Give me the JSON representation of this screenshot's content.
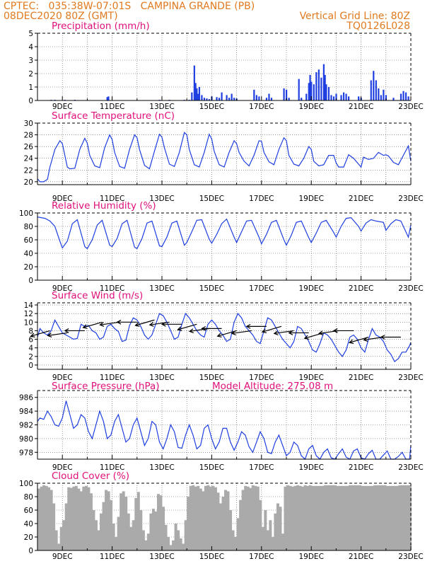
{
  "header": {
    "line1": "CPTEC:   035:38W-07:01S   CAMPINA GRANDE (PB)",
    "line2": "08DEC2020 80Z (GMT)",
    "grid_note": "Vertical Grid Line: 80Z",
    "code": "TQ0126L028"
  },
  "colors": {
    "header": "#e07a1f",
    "title": "#e0107a",
    "series": "#1f3fe0",
    "cloud": "#aaaaaa",
    "wind_arrow": "#000000"
  },
  "chart_data": [
    {
      "type": "bar",
      "title": "Precipitation (mm/h)",
      "ylim": [
        0,
        5
      ],
      "yticks": [
        0,
        1,
        2,
        3,
        4,
        5
      ],
      "x_start": "08DEC",
      "x_end": "23DEC",
      "x_ticks": [
        "9DEC",
        "11DEC",
        "13DEC",
        "15DEC",
        "17DEC",
        "19DEC",
        "21DEC",
        "23DEC"
      ],
      "x_days": [
        8.55,
        8.7,
        9.1,
        9.5,
        10.8,
        10.85,
        12.9,
        13.3,
        13.9,
        14.1,
        14.2,
        14.3,
        14.35,
        14.4,
        14.45,
        14.5,
        14.6,
        14.7,
        14.8,
        14.9,
        15.0,
        15.2,
        15.3,
        15.4,
        15.6,
        15.7,
        15.8,
        15.9,
        16.0,
        16.7,
        16.8,
        16.9,
        17.2,
        17.3,
        17.4,
        17.9,
        18.0,
        18.1,
        18.5,
        18.6,
        18.8,
        18.9,
        18.95,
        19.0,
        19.1,
        19.2,
        19.3,
        19.4,
        19.5,
        19.55,
        19.6,
        19.7,
        19.8,
        19.9,
        20.0,
        20.2,
        20.3,
        20.4,
        20.5,
        20.9,
        21.0,
        21.4,
        21.5,
        21.6,
        21.7,
        21.8,
        21.9,
        22.0,
        22.3,
        22.6,
        22.7,
        22.8,
        22.9
      ],
      "values": [
        0.05,
        0.05,
        0.05,
        0.05,
        0.25,
        0.3,
        0.05,
        0.05,
        0.05,
        0.05,
        0.6,
        2.6,
        1.3,
        0.9,
        0.5,
        1.0,
        0.4,
        0.2,
        0.15,
        0.1,
        0.3,
        0.25,
        0.2,
        0.6,
        0.4,
        0.2,
        0.5,
        0.2,
        0.15,
        0.8,
        0.4,
        0.3,
        0.2,
        0.5,
        0.2,
        0.9,
        0.8,
        0.2,
        1.6,
        0.2,
        0.5,
        1.3,
        1.9,
        1.4,
        1.2,
        2.1,
        2.3,
        1.7,
        2.7,
        1.9,
        1.2,
        1.0,
        0.4,
        0.3,
        0.5,
        0.4,
        0.6,
        0.5,
        0.3,
        0.3,
        0.2,
        1.5,
        2.2,
        1.5,
        0.9,
        0.4,
        0.8,
        0.4,
        0.2,
        0.5,
        0.7,
        0.6,
        0.3
      ]
    },
    {
      "type": "line",
      "title": "Surface Temperature (nC)",
      "ylim": [
        19.5,
        30
      ],
      "yticks": [
        20,
        22,
        24,
        26,
        28,
        30
      ],
      "x_ticks": [
        "9DEC",
        "11DEC",
        "13DEC",
        "15DEC",
        "17DEC",
        "19DEC",
        "21DEC",
        "23DEC"
      ],
      "x_days": [
        8.0,
        8.1,
        8.25,
        8.4,
        8.5,
        8.7,
        8.9,
        9.0,
        9.1,
        9.2,
        9.3,
        9.5,
        9.7,
        9.9,
        10.0,
        10.1,
        10.3,
        10.5,
        10.7,
        10.9,
        11.0,
        11.1,
        11.3,
        11.5,
        11.7,
        11.9,
        12.0,
        12.1,
        12.3,
        12.5,
        12.7,
        12.9,
        13.0,
        13.1,
        13.3,
        13.5,
        13.7,
        13.9,
        14.0,
        14.1,
        14.3,
        14.5,
        14.7,
        14.9,
        15.0,
        15.1,
        15.3,
        15.5,
        15.7,
        15.9,
        16.0,
        16.1,
        16.3,
        16.5,
        16.7,
        16.9,
        17.0,
        17.1,
        17.3,
        17.5,
        17.7,
        17.9,
        18.0,
        18.1,
        18.3,
        18.5,
        18.7,
        18.9,
        19.0,
        19.1,
        19.3,
        19.5,
        19.7,
        19.9,
        20.0,
        20.1,
        20.3,
        20.5,
        20.7,
        20.9,
        21.0,
        21.1,
        21.3,
        21.5,
        21.7,
        21.9,
        22.0,
        22.1,
        22.3,
        22.5,
        22.7,
        22.9,
        23.0
      ],
      "values": [
        20.5,
        20.0,
        20.0,
        20.4,
        22.5,
        25.5,
        27.0,
        26.5,
        24.5,
        22.5,
        22.2,
        22.3,
        25.5,
        27.4,
        26.6,
        24.5,
        22.7,
        22.4,
        25.8,
        28.0,
        27.2,
        25.0,
        22.6,
        22.3,
        25.5,
        28.0,
        27.5,
        25.5,
        22.8,
        22.2,
        25.2,
        28.1,
        27.6,
        25.8,
        23.0,
        22.6,
        25.0,
        28.4,
        28.0,
        25.5,
        22.9,
        22.5,
        25.0,
        28.1,
        27.3,
        25.2,
        22.9,
        22.5,
        25.0,
        27.0,
        26.5,
        25.0,
        23.5,
        22.7,
        24.5,
        27.0,
        26.9,
        25.0,
        23.4,
        22.9,
        25.5,
        27.5,
        27.0,
        24.5,
        23.0,
        22.7,
        24.0,
        26.0,
        25.5,
        23.5,
        22.7,
        22.9,
        24.5,
        24.5,
        23.2,
        22.5,
        22.5,
        24.6,
        24.0,
        23.0,
        22.5,
        24.2,
        23.8,
        24.0,
        25.0,
        24.5,
        24.6,
        24.4,
        23.3,
        22.9,
        24.5,
        26.1,
        23.5
      ]
    },
    {
      "type": "line",
      "title": "Relative Humidity (%)",
      "ylim": [
        0,
        100
      ],
      "yticks": [
        0,
        20,
        40,
        60,
        80,
        100
      ],
      "x_ticks": [
        "9DEC",
        "11DEC",
        "13DEC",
        "15DEC",
        "17DEC",
        "19DEC",
        "21DEC",
        "23DEC"
      ],
      "x_days": [
        8.0,
        8.15,
        8.3,
        8.5,
        8.7,
        8.9,
        9.0,
        9.2,
        9.4,
        9.6,
        9.9,
        10.0,
        10.2,
        10.4,
        10.6,
        10.9,
        11.0,
        11.2,
        11.4,
        11.6,
        11.9,
        12.0,
        12.2,
        12.4,
        12.6,
        12.9,
        13.0,
        13.2,
        13.4,
        13.6,
        13.9,
        14.0,
        14.2,
        14.4,
        14.6,
        14.9,
        15.0,
        15.2,
        15.4,
        15.6,
        15.9,
        16.0,
        16.2,
        16.4,
        16.6,
        16.9,
        17.0,
        17.2,
        17.4,
        17.6,
        17.9,
        18.0,
        18.2,
        18.4,
        18.6,
        18.9,
        19.0,
        19.2,
        19.4,
        19.6,
        19.9,
        20.0,
        20.2,
        20.4,
        20.6,
        20.9,
        21.0,
        21.2,
        21.4,
        21.6,
        21.9,
        22.0,
        22.2,
        22.4,
        22.6,
        22.9,
        23.0
      ],
      "values": [
        94,
        93,
        92,
        88,
        80,
        58,
        48,
        58,
        84,
        90,
        50,
        47,
        60,
        82,
        89,
        52,
        50,
        62,
        84,
        89,
        49,
        47,
        62,
        85,
        88,
        51,
        50,
        64,
        85,
        88,
        52,
        56,
        72,
        89,
        90,
        61,
        55,
        68,
        84,
        91,
        64,
        56,
        72,
        88,
        89,
        64,
        54,
        68,
        86,
        89,
        60,
        52,
        67,
        86,
        88,
        63,
        56,
        70,
        86,
        89,
        71,
        64,
        80,
        92,
        93,
        80,
        73,
        85,
        90,
        88,
        86,
        74,
        84,
        90,
        88,
        64,
        82
      ]
    },
    {
      "type": "line",
      "title": "Surface Wind (m/s)",
      "ylim": [
        -1,
        14.5
      ],
      "yticks": [
        0,
        2,
        4,
        6,
        8,
        10,
        12,
        14
      ],
      "x_ticks": [
        "9DEC",
        "11DEC",
        "13DEC",
        "15DEC",
        "17DEC",
        "19DEC",
        "21DEC",
        "23DEC"
      ],
      "x_days": [
        8.0,
        8.1,
        8.25,
        8.4,
        8.55,
        8.7,
        8.85,
        9.0,
        9.15,
        9.3,
        9.45,
        9.6,
        9.75,
        9.9,
        10.05,
        10.2,
        10.35,
        10.5,
        10.65,
        10.8,
        10.95,
        11.1,
        11.25,
        11.4,
        11.55,
        11.7,
        11.85,
        12.0,
        12.15,
        12.3,
        12.45,
        12.6,
        12.75,
        12.9,
        13.05,
        13.2,
        13.35,
        13.5,
        13.65,
        13.8,
        13.95,
        14.1,
        14.25,
        14.4,
        14.55,
        14.7,
        14.85,
        15.0,
        15.15,
        15.3,
        15.45,
        15.6,
        15.75,
        15.9,
        16.05,
        16.2,
        16.35,
        16.5,
        16.65,
        16.8,
        16.95,
        17.1,
        17.25,
        17.4,
        17.55,
        17.7,
        17.85,
        18.0,
        18.15,
        18.3,
        18.45,
        18.6,
        18.75,
        18.9,
        19.05,
        19.2,
        19.35,
        19.5,
        19.65,
        19.8,
        19.95,
        20.1,
        20.25,
        20.4,
        20.55,
        20.7,
        20.85,
        21.0,
        21.15,
        21.3,
        21.45,
        21.6,
        21.75,
        21.9,
        22.05,
        22.2,
        22.35,
        22.5,
        22.65,
        22.8,
        22.95,
        23.0
      ],
      "values": [
        6.5,
        8.5,
        7.5,
        7.0,
        8.0,
        10.5,
        9.0,
        7.5,
        7.0,
        6.5,
        6.0,
        6.2,
        9.5,
        9.0,
        9.2,
        8.0,
        7.5,
        6.0,
        6.5,
        9.0,
        9.5,
        8.5,
        7.8,
        5.5,
        5.8,
        9.2,
        11.0,
        10.5,
        9.0,
        7.0,
        6.0,
        7.0,
        9.5,
        12.0,
        11.5,
        10.0,
        8.0,
        6.0,
        6.5,
        9.5,
        12.0,
        11.0,
        9.5,
        8.0,
        7.0,
        6.5,
        9.5,
        10.5,
        9.5,
        8.0,
        7.0,
        5.5,
        6.0,
        10.0,
        12.0,
        11.0,
        9.0,
        8.0,
        7.0,
        5.5,
        5.0,
        8.0,
        11.0,
        10.5,
        9.0,
        7.5,
        6.0,
        5.0,
        4.0,
        5.5,
        9.0,
        8.5,
        7.0,
        5.5,
        3.5,
        3.0,
        5.0,
        7.5,
        7.0,
        6.0,
        4.5,
        3.0,
        2.0,
        3.5,
        6.5,
        7.0,
        6.0,
        4.0,
        3.0,
        6.0,
        8.5,
        7.0,
        6.5,
        5.5,
        3.5,
        2.5,
        0.8,
        1.5,
        3.0,
        3.0,
        4.5,
        5.3
      ],
      "arrow_x_days": [
        8.5,
        9.2,
        9.9,
        10.6,
        11.3,
        12.0,
        12.7,
        13.3,
        13.8,
        14.4,
        14.9,
        15.4,
        16.0,
        16.6,
        17.2,
        17.8,
        18.3,
        18.9,
        19.5,
        20.1,
        20.7,
        21.3,
        21.9,
        22.6
      ],
      "arrow_speeds": [
        8,
        7.5,
        8,
        10,
        10,
        10,
        10.5,
        10,
        9.5,
        9.5,
        8.5,
        8.5,
        8,
        8,
        9,
        9,
        8,
        7.5,
        7.5,
        8,
        8,
        6.5,
        6.5,
        6.5
      ]
    },
    {
      "type": "line",
      "title": "Surface Pressure (hPa)",
      "annotation": "Model Altitude: 275.08 m",
      "ylim": [
        977,
        987
      ],
      "yticks": [
        978,
        980,
        982,
        984,
        986
      ],
      "x_ticks": [
        "9DEC",
        "11DEC",
        "13DEC",
        "15DEC",
        "17DEC",
        "19DEC",
        "21DEC",
        "23DEC"
      ],
      "x_days": [
        8.0,
        8.1,
        8.25,
        8.4,
        8.55,
        8.7,
        8.85,
        9.0,
        9.15,
        9.3,
        9.45,
        9.6,
        9.75,
        9.9,
        10.05,
        10.2,
        10.35,
        10.5,
        10.65,
        10.8,
        10.95,
        11.1,
        11.25,
        11.4,
        11.55,
        11.7,
        11.85,
        12.0,
        12.15,
        12.3,
        12.45,
        12.6,
        12.75,
        12.9,
        13.05,
        13.2,
        13.35,
        13.5,
        13.65,
        13.8,
        13.95,
        14.1,
        14.25,
        14.4,
        14.55,
        14.7,
        14.85,
        15.0,
        15.15,
        15.3,
        15.45,
        15.6,
        15.75,
        15.9,
        16.05,
        16.2,
        16.35,
        16.5,
        16.65,
        16.8,
        16.95,
        17.1,
        17.25,
        17.4,
        17.55,
        17.7,
        17.85,
        18.0,
        18.15,
        18.3,
        18.45,
        18.6,
        18.75,
        18.9,
        19.05,
        19.2,
        19.35,
        19.5,
        19.65,
        19.8,
        19.95,
        20.1,
        20.25,
        20.4,
        20.55,
        20.7,
        20.85,
        21.0,
        21.15,
        21.3,
        21.45,
        21.6,
        21.75,
        21.9,
        22.05,
        22.2,
        22.35,
        22.5,
        22.65,
        22.8,
        22.95,
        23.0
      ],
      "values": [
        982.5,
        983.0,
        982.8,
        984.0,
        983.2,
        982.0,
        981.8,
        983.0,
        985.5,
        983.5,
        981.5,
        982.0,
        983.5,
        983.0,
        981.0,
        980.0,
        982.0,
        984.0,
        982.5,
        980.0,
        980.5,
        982.5,
        983.5,
        981.5,
        979.5,
        980.0,
        982.0,
        983.0,
        981.0,
        979.0,
        980.0,
        982.5,
        982.0,
        979.5,
        978.5,
        980.0,
        982.0,
        981.0,
        978.7,
        978.6,
        980.5,
        982.0,
        980.5,
        978.5,
        979.0,
        981.5,
        982.0,
        980.0,
        978.5,
        979.5,
        981.5,
        981.5,
        979.5,
        978.3,
        979.5,
        981.0,
        980.5,
        978.8,
        978.0,
        979.5,
        981.0,
        980.0,
        978.0,
        977.8,
        979.5,
        980.5,
        979.0,
        977.5,
        978.0,
        979.5,
        979.0,
        977.5,
        977.0,
        978.5,
        979.0,
        977.5,
        976.8,
        978.0,
        978.5,
        977.2,
        976.7,
        977.8,
        978.5,
        977.3,
        976.8,
        978.2,
        978.5,
        977.2,
        976.8,
        977.8,
        978.3,
        977.0,
        976.6,
        977.6,
        978.2,
        977.0,
        976.5,
        977.4,
        978.0,
        977.0,
        976.8,
        979.0
      ]
    },
    {
      "type": "area",
      "title": "Cloud Cover (%)",
      "ylim": [
        0,
        100
      ],
      "yticks": [
        0,
        20,
        40,
        60,
        80,
        100
      ],
      "x_ticks": [
        "9DEC",
        "11DEC",
        "13DEC",
        "15DEC",
        "17DEC",
        "19DEC",
        "21DEC",
        "23DEC"
      ],
      "x_days": [
        8.0,
        8.1,
        8.2,
        8.3,
        8.4,
        8.5,
        8.6,
        8.7,
        8.8,
        8.9,
        9.0,
        9.1,
        9.2,
        9.3,
        9.4,
        9.5,
        9.6,
        9.7,
        9.8,
        9.9,
        10.0,
        10.1,
        10.2,
        10.3,
        10.4,
        10.5,
        10.6,
        10.7,
        10.8,
        10.9,
        11.0,
        11.1,
        11.2,
        11.3,
        11.4,
        11.5,
        11.6,
        11.7,
        11.8,
        11.9,
        12.0,
        12.1,
        12.2,
        12.3,
        12.4,
        12.5,
        12.6,
        12.7,
        12.8,
        12.9,
        13.0,
        13.1,
        13.2,
        13.3,
        13.4,
        13.5,
        13.6,
        13.7,
        13.8,
        13.9,
        14.0,
        14.1,
        14.2,
        14.3,
        14.4,
        14.5,
        14.6,
        14.7,
        14.8,
        14.9,
        15.0,
        15.1,
        15.2,
        15.3,
        15.4,
        15.5,
        15.6,
        15.7,
        15.8,
        15.9,
        16.0,
        16.1,
        16.2,
        16.3,
        16.4,
        16.5,
        16.6,
        16.7,
        16.8,
        16.9,
        17.0,
        17.1,
        17.2,
        17.3,
        17.4,
        17.5,
        17.6,
        17.7,
        17.8,
        17.9,
        18.0,
        18.1,
        18.2,
        18.3,
        18.4,
        18.5,
        18.6,
        18.7,
        18.8,
        18.9,
        19.0,
        19.5,
        20.0,
        20.5,
        21.0,
        21.5,
        22.0,
        22.5,
        23.0
      ],
      "values": [
        92,
        95,
        97,
        96,
        94,
        90,
        70,
        30,
        10,
        35,
        45,
        70,
        94,
        93,
        95,
        96,
        92,
        88,
        95,
        96,
        94,
        85,
        60,
        45,
        30,
        55,
        72,
        90,
        88,
        75,
        40,
        20,
        50,
        85,
        88,
        80,
        55,
        35,
        45,
        78,
        87,
        60,
        30,
        15,
        25,
        55,
        62,
        58,
        84,
        82,
        65,
        38,
        20,
        8,
        15,
        40,
        30,
        18,
        10,
        45,
        80,
        96,
        97,
        95,
        96,
        92,
        88,
        96,
        97,
        95,
        96,
        94,
        86,
        70,
        80,
        90,
        88,
        60,
        30,
        20,
        48,
        75,
        90,
        96,
        95,
        93,
        97,
        96,
        95,
        75,
        35,
        60,
        30,
        45,
        20,
        55,
        70,
        65,
        25,
        95,
        97,
        96,
        95,
        96,
        97,
        96,
        95,
        97,
        96,
        97,
        96,
        97,
        96,
        97,
        96,
        97,
        96,
        97,
        96
      ]
    }
  ]
}
